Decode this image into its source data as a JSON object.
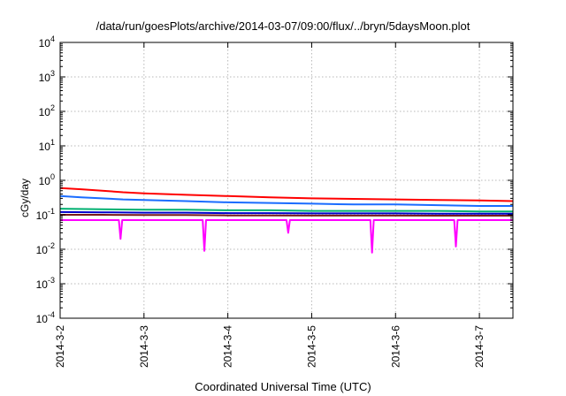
{
  "chart_data": {
    "type": "line",
    "title": "/data/run/goesPlots/archive/2014-03-07/09:00/flux/../bryn/5daysMoon.plot",
    "xlabel": "Coordinated Universal Time (UTC)",
    "ylabel": "cGy/day",
    "y_scale": "log",
    "ylim": [
      0.0001,
      10000
    ],
    "xlim": [
      0,
      5.4
    ],
    "x_ticks": [
      {
        "value": 0,
        "label": "2014-3-2"
      },
      {
        "value": 1,
        "label": "2014-3-3"
      },
      {
        "value": 2,
        "label": "2014-3-4"
      },
      {
        "value": 3,
        "label": "2014-3-5"
      },
      {
        "value": 4,
        "label": "2014-3-6"
      },
      {
        "value": 5,
        "label": "2014-3-7"
      }
    ],
    "y_ticks": [
      {
        "exp": "-4"
      },
      {
        "exp": "-3"
      },
      {
        "exp": "-2"
      },
      {
        "exp": "-1"
      },
      {
        "exp": "0"
      },
      {
        "exp": "1"
      },
      {
        "exp": "2"
      },
      {
        "exp": "3"
      },
      {
        "exp": "4"
      }
    ],
    "y_tick_base": "10",
    "grid": true,
    "series": [
      {
        "color": "#ff0000",
        "x": [
          0,
          0.25,
          0.5,
          0.75,
          1,
          1.5,
          2,
          2.5,
          3,
          3.5,
          4,
          4.5,
          5,
          5.4
        ],
        "values": [
          0.6,
          0.55,
          0.5,
          0.45,
          0.42,
          0.38,
          0.35,
          0.32,
          0.3,
          0.29,
          0.28,
          0.27,
          0.26,
          0.25
        ]
      },
      {
        "color": "#1a6cff",
        "x": [
          0,
          0.25,
          0.5,
          0.75,
          1,
          1.5,
          2,
          2.5,
          3,
          3.5,
          4,
          4.5,
          5,
          5.4
        ],
        "values": [
          0.35,
          0.32,
          0.3,
          0.28,
          0.27,
          0.25,
          0.23,
          0.22,
          0.21,
          0.2,
          0.2,
          0.19,
          0.18,
          0.18
        ]
      },
      {
        "color": "#00b070",
        "x": [
          0,
          0.5,
          1,
          1.5,
          2,
          2.5,
          3,
          3.5,
          4,
          4.5,
          5,
          5.4
        ],
        "values": [
          0.15,
          0.145,
          0.14,
          0.14,
          0.135,
          0.135,
          0.13,
          0.13,
          0.13,
          0.13,
          0.125,
          0.125
        ]
      },
      {
        "color": "#0000cc",
        "x": [
          0,
          0.5,
          1,
          1.5,
          2,
          2.5,
          3,
          3.5,
          4,
          4.5,
          5,
          5.4
        ],
        "values": [
          0.12,
          0.118,
          0.115,
          0.115,
          0.112,
          0.112,
          0.11,
          0.11,
          0.11,
          0.108,
          0.108,
          0.108
        ]
      },
      {
        "color": "#7a1a1a",
        "x": [
          0,
          0.5,
          1,
          1.5,
          2,
          2.5,
          3,
          3.5,
          4,
          4.5,
          5,
          5.4
        ],
        "values": [
          0.1,
          0.1,
          0.098,
          0.098,
          0.096,
          0.096,
          0.095,
          0.095,
          0.095,
          0.094,
          0.094,
          0.094
        ]
      },
      {
        "color": "#ff00ff",
        "x": [
          0,
          0.5,
          0.7,
          0.72,
          0.74,
          1,
          1.5,
          1.7,
          1.72,
          1.74,
          2,
          2.5,
          2.7,
          2.72,
          2.74,
          3,
          3.5,
          3.7,
          3.72,
          3.74,
          4,
          4.5,
          4.7,
          4.72,
          4.74,
          5,
          5.4
        ],
        "values": [
          0.07,
          0.07,
          0.07,
          0.02,
          0.07,
          0.07,
          0.07,
          0.07,
          0.009,
          0.07,
          0.07,
          0.07,
          0.07,
          0.03,
          0.07,
          0.07,
          0.07,
          0.07,
          0.008,
          0.07,
          0.07,
          0.07,
          0.07,
          0.012,
          0.07,
          0.07,
          0.07
        ]
      }
    ]
  }
}
